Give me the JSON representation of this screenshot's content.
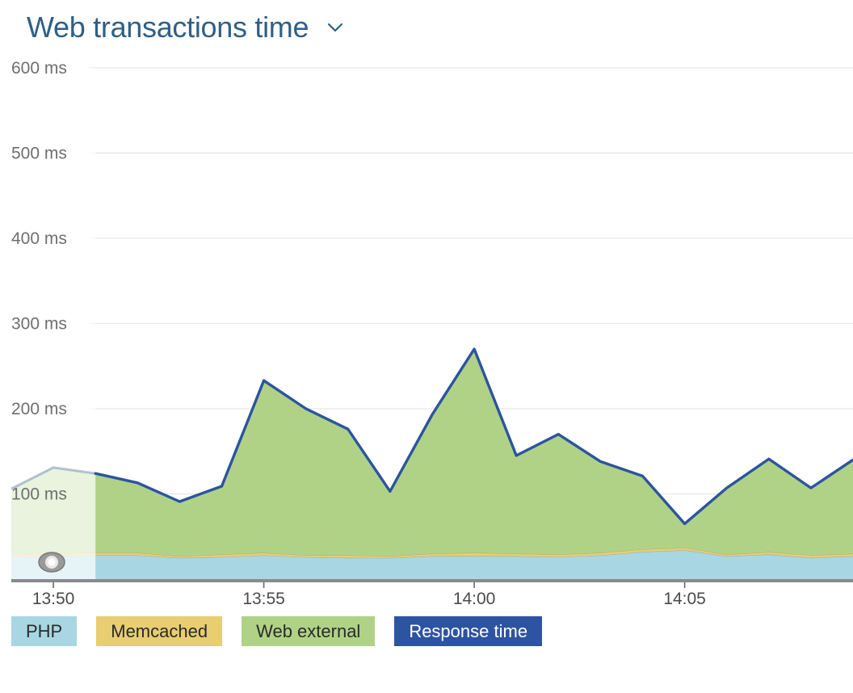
{
  "header": {
    "title": "Web transactions time"
  },
  "colors": {
    "php": "#a9d6e3",
    "memcached": "#e8cd72",
    "web_external": "#b0d287",
    "response_time": "#2d54a0",
    "grid": "#e6e6e6",
    "axis": "#8a8a8a"
  },
  "legend": {
    "php": "PHP",
    "memcached": "Memcached",
    "web_external": "Web external",
    "response_time": "Response time"
  },
  "chart_data": {
    "type": "area",
    "title": "Web transactions time",
    "ylim": [
      0,
      600
    ],
    "xlim": [
      "13:49",
      "14:09"
    ],
    "yticks": [
      "600 ms",
      "500 ms",
      "400 ms",
      "300 ms",
      "200 ms",
      "100 ms"
    ],
    "xticks": [
      "13:50",
      "13:55",
      "14:00",
      "14:05"
    ],
    "grid": true,
    "legend_position": "bottom",
    "x": [
      "13:49",
      "13:50",
      "13:51",
      "13:52",
      "13:53",
      "13:54",
      "13:55",
      "13:56",
      "13:57",
      "13:58",
      "13:59",
      "14:00",
      "14:01",
      "14:02",
      "14:03",
      "14:04",
      "14:05",
      "14:06",
      "14:07",
      "14:08",
      "14:09"
    ],
    "stacked": true,
    "series": [
      {
        "name": "PHP",
        "color_key": "php",
        "values": [
          26,
          27,
          28,
          28,
          25,
          26,
          28,
          26,
          25,
          25,
          27,
          27,
          27,
          26,
          28,
          32,
          34,
          27,
          29,
          25,
          27
        ]
      },
      {
        "name": "Memcached",
        "color_key": "memcached",
        "values": [
          3,
          3,
          3,
          3,
          2,
          3,
          3,
          2,
          3,
          2,
          3,
          4,
          3,
          3,
          3,
          3,
          3,
          2,
          3,
          3,
          3
        ]
      },
      {
        "name": "Web external",
        "color_key": "web_external",
        "values": [
          77,
          101,
          93,
          82,
          64,
          80,
          202,
          172,
          148,
          76,
          163,
          239,
          115,
          141,
          107,
          86,
          28,
          78,
          109,
          79,
          110
        ]
      },
      {
        "name": "Response time",
        "color_key": "response_time",
        "type": "line",
        "values": [
          106,
          131,
          124,
          113,
          91,
          109,
          233,
          200,
          176,
          103,
          193,
          270,
          145,
          170,
          138,
          121,
          65,
          107,
          141,
          107,
          140
        ]
      }
    ],
    "selection": {
      "from": "13:49",
      "to": "13:51"
    }
  }
}
